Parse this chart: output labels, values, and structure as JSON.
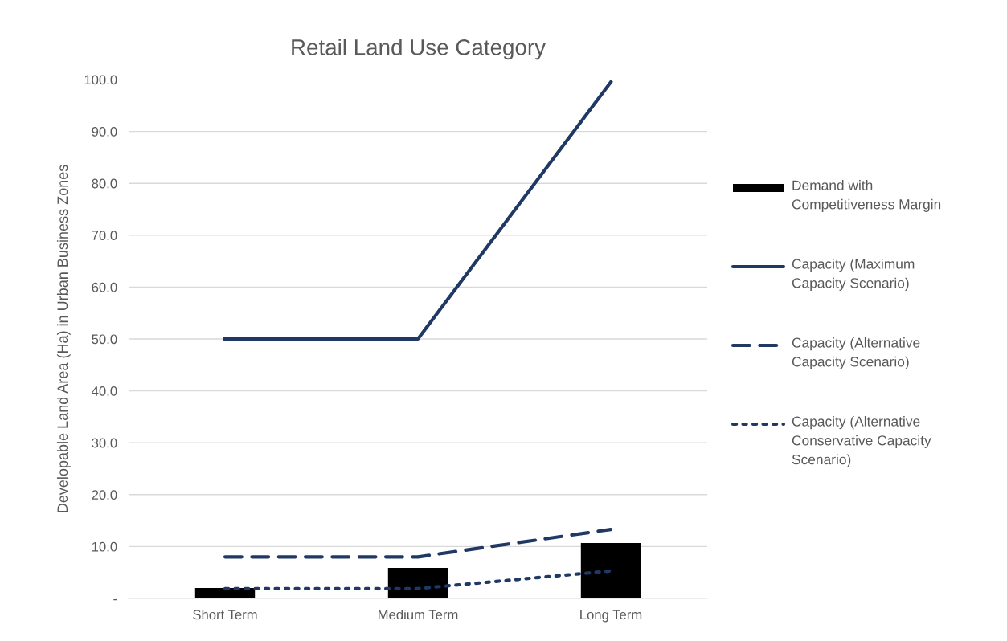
{
  "chart_data": {
    "type": "bar",
    "title": "Retail Land Use Category",
    "ylabel": "Developable Land Area (Ha) in Urban Business Zones",
    "categories": [
      "Short Term",
      "Medium Term",
      "Long Term"
    ],
    "series": [
      {
        "name": "Demand with Competitiveness Margin",
        "color": "#000000",
        "values": [
          2.0,
          5.9,
          10.7
        ]
      },
      {
        "name": "Capacity (Maximum Capacity Scenario)",
        "type": "line",
        "color": "#1f3864",
        "line_style": "solid",
        "values": [
          50.0,
          50.0,
          99.5
        ]
      },
      {
        "name": "Capacity (Alternative Capacity Scenario)",
        "type": "line",
        "color": "#1f3864",
        "line_style": "dashed",
        "values": [
          8.0,
          8.0,
          13.3
        ]
      },
      {
        "name": "Capacity (Alternative Conservative Capacity Scenario)",
        "type": "line",
        "color": "#1f3864",
        "line_style": "dotted",
        "values": [
          1.9,
          1.9,
          5.3
        ]
      }
    ],
    "ylim": [
      0,
      100
    ],
    "yticks": [
      {
        "value": 0,
        "label": "-"
      },
      {
        "value": 10,
        "label": "10.0"
      },
      {
        "value": 20,
        "label": "20.0"
      },
      {
        "value": 30,
        "label": "30.0"
      },
      {
        "value": 40,
        "label": "40.0"
      },
      {
        "value": 50,
        "label": "50.0"
      },
      {
        "value": 60,
        "label": "60.0"
      },
      {
        "value": 70,
        "label": "70.0"
      },
      {
        "value": 80,
        "label": "80.0"
      },
      {
        "value": 90,
        "label": "90.0"
      },
      {
        "value": 100,
        "label": "100.0"
      }
    ],
    "grid": "y",
    "legend": "right"
  }
}
